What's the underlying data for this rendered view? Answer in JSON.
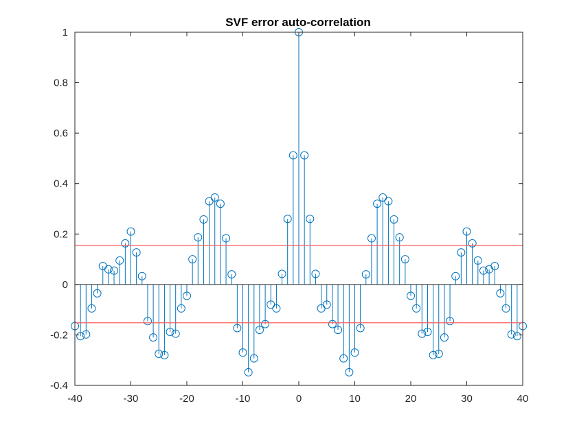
{
  "chart_data": {
    "type": "stem",
    "title": "SVF error auto-correlation",
    "xlabel": "",
    "ylabel": "",
    "xlim": [
      -40,
      40
    ],
    "ylim": [
      -0.4,
      1
    ],
    "xticks": [
      -40,
      -30,
      -20,
      -10,
      0,
      10,
      20,
      30,
      40
    ],
    "yticks": [
      -0.4,
      -0.2,
      0,
      0.2,
      0.4,
      0.6,
      0.8,
      1
    ],
    "grid": false,
    "stem_color": "#0072BD",
    "threshold_color": "#FF5A5A",
    "thresholds": [
      0.155,
      -0.152
    ],
    "x": [
      -40,
      -39,
      -38,
      -37,
      -36,
      -35,
      -34,
      -33,
      -32,
      -31,
      -30,
      -29,
      -28,
      -27,
      -26,
      -25,
      -24,
      -23,
      -22,
      -21,
      -20,
      -19,
      -18,
      -17,
      -16,
      -15,
      -14,
      -13,
      -12,
      -11,
      -10,
      -9,
      -8,
      -7,
      -6,
      -5,
      -4,
      -3,
      -2,
      -1,
      0,
      1,
      2,
      3,
      4,
      5,
      6,
      7,
      8,
      9,
      10,
      11,
      12,
      13,
      14,
      15,
      16,
      17,
      18,
      19,
      20,
      21,
      22,
      23,
      24,
      25,
      26,
      27,
      28,
      29,
      30,
      31,
      32,
      33,
      34,
      35,
      36,
      37,
      38,
      39,
      40
    ],
    "values": [
      -0.165,
      -0.205,
      -0.198,
      -0.095,
      -0.035,
      0.073,
      0.06,
      0.055,
      0.095,
      0.163,
      0.21,
      0.127,
      0.033,
      -0.145,
      -0.21,
      -0.275,
      -0.28,
      -0.188,
      -0.195,
      -0.095,
      -0.045,
      0.1,
      0.187,
      0.258,
      0.33,
      0.345,
      0.32,
      0.183,
      0.04,
      -0.173,
      -0.27,
      -0.348,
      -0.293,
      -0.18,
      -0.157,
      -0.08,
      -0.095,
      0.042,
      0.26,
      0.512,
      1.0,
      0.512,
      0.26,
      0.042,
      -0.095,
      -0.08,
      -0.157,
      -0.18,
      -0.293,
      -0.348,
      -0.27,
      -0.173,
      0.04,
      0.183,
      0.32,
      0.345,
      0.33,
      0.258,
      0.187,
      0.1,
      -0.045,
      -0.095,
      -0.195,
      -0.188,
      -0.28,
      -0.275,
      -0.21,
      -0.145,
      0.033,
      0.127,
      0.21,
      0.163,
      0.095,
      0.055,
      0.06,
      0.073,
      -0.035,
      -0.095,
      -0.198,
      -0.205,
      -0.165
    ]
  }
}
